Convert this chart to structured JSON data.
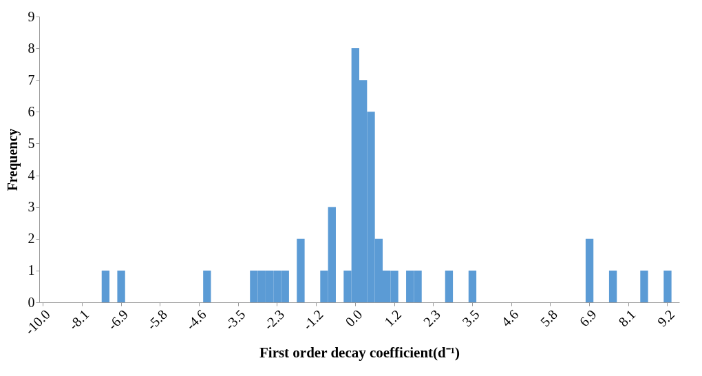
{
  "chart_data": {
    "type": "bar",
    "xlabel": "First order decay coefficient(d⁻¹)",
    "ylabel": "Frequency",
    "categories": [
      "-10.0",
      null,
      null,
      null,
      null,
      "-8.1",
      null,
      null,
      null,
      null,
      "-6.9",
      null,
      null,
      null,
      null,
      "-5.8",
      null,
      null,
      null,
      null,
      "-4.6",
      null,
      null,
      null,
      null,
      "-3.5",
      null,
      null,
      null,
      null,
      "-2.3",
      null,
      null,
      null,
      null,
      "-1.2",
      null,
      null,
      null,
      null,
      "0.0",
      null,
      null,
      null,
      null,
      "1.2",
      null,
      null,
      null,
      null,
      "2.3",
      null,
      null,
      null,
      null,
      "3.5",
      null,
      null,
      null,
      null,
      "4.6",
      null,
      null,
      null,
      null,
      "5.8",
      null,
      null,
      null,
      null,
      "6.9",
      null,
      null,
      null,
      null,
      "8.1",
      null,
      null,
      null,
      null,
      "9.2",
      null
    ],
    "values": [
      0,
      0,
      0,
      0,
      0,
      0,
      0,
      0,
      1,
      0,
      1,
      0,
      0,
      0,
      0,
      0,
      0,
      0,
      0,
      0,
      0,
      1,
      0,
      0,
      0,
      0,
      0,
      1,
      1,
      1,
      1,
      1,
      0,
      2,
      0,
      0,
      1,
      3,
      0,
      1,
      8,
      7,
      6,
      2,
      1,
      1,
      0,
      1,
      1,
      0,
      0,
      0,
      1,
      0,
      0,
      1,
      0,
      0,
      0,
      0,
      0,
      0,
      0,
      0,
      0,
      0,
      0,
      0,
      0,
      0,
      2,
      0,
      0,
      1,
      0,
      0,
      0,
      1,
      0,
      0,
      1,
      0
    ],
    "color": "#5b9bd5",
    "ylim": [
      0,
      9
    ],
    "yticks": [
      0,
      1,
      2,
      3,
      4,
      5,
      6,
      7,
      8,
      9
    ],
    "grid": false
  }
}
